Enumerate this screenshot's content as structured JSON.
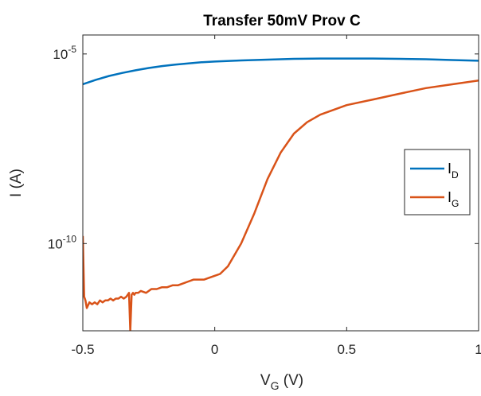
{
  "chart_data": {
    "type": "line",
    "title": "Transfer 50mV Prov C",
    "xlabel": {
      "main": "V",
      "sub": "G",
      "suffix": " (V)"
    },
    "ylabel": "I (A)",
    "xlim": [
      -0.5,
      1
    ],
    "ylim_log10": [
      -12.3,
      -4.5
    ],
    "yscale": "log",
    "x_ticks": [
      {
        "value": -0.5,
        "label": "-0.5"
      },
      {
        "value": 0,
        "label": "0"
      },
      {
        "value": 0.5,
        "label": "0.5"
      },
      {
        "value": 1,
        "label": "1"
      }
    ],
    "y_ticks": [
      {
        "exp": -5,
        "base": "10",
        "sup": "-5"
      },
      {
        "exp": -10,
        "base": "10",
        "sup": "-10"
      }
    ],
    "grid": false,
    "legend_position": "right",
    "series": [
      {
        "name": "I",
        "sub": "D",
        "color": "#0072BD",
        "x": [
          -0.5,
          -0.45,
          -0.4,
          -0.35,
          -0.3,
          -0.25,
          -0.2,
          -0.15,
          -0.1,
          -0.05,
          0,
          0.1,
          0.2,
          0.3,
          0.4,
          0.5,
          0.6,
          0.7,
          0.8,
          0.9,
          1.0
        ],
        "log10_y": [
          -5.8,
          -5.68,
          -5.58,
          -5.5,
          -5.43,
          -5.37,
          -5.32,
          -5.28,
          -5.25,
          -5.22,
          -5.2,
          -5.17,
          -5.15,
          -5.13,
          -5.12,
          -5.12,
          -5.12,
          -5.13,
          -5.14,
          -5.16,
          -5.18
        ]
      },
      {
        "name": "I",
        "sub": "G",
        "color": "#D95319",
        "x": [
          -0.5,
          -0.495,
          -0.49,
          -0.485,
          -0.475,
          -0.465,
          -0.455,
          -0.445,
          -0.435,
          -0.425,
          -0.415,
          -0.405,
          -0.395,
          -0.385,
          -0.375,
          -0.365,
          -0.355,
          -0.345,
          -0.335,
          -0.325,
          -0.32,
          -0.315,
          -0.31,
          -0.305,
          -0.3,
          -0.29,
          -0.28,
          -0.26,
          -0.24,
          -0.22,
          -0.2,
          -0.18,
          -0.16,
          -0.14,
          -0.12,
          -0.1,
          -0.08,
          -0.06,
          -0.04,
          -0.02,
          0,
          0.02,
          0.05,
          0.1,
          0.15,
          0.2,
          0.25,
          0.3,
          0.35,
          0.4,
          0.5,
          0.6,
          0.7,
          0.8,
          0.9,
          1.0
        ],
        "log10_y": [
          -9.8,
          -11.4,
          -11.5,
          -11.7,
          -11.55,
          -11.6,
          -11.55,
          -11.6,
          -11.5,
          -11.55,
          -11.5,
          -11.5,
          -11.45,
          -11.5,
          -11.45,
          -11.45,
          -11.4,
          -11.45,
          -11.4,
          -11.3,
          -12.3,
          -11.35,
          -11.3,
          -11.35,
          -11.3,
          -11.3,
          -11.25,
          -11.3,
          -11.2,
          -11.2,
          -11.15,
          -11.15,
          -11.1,
          -11.1,
          -11.05,
          -11.0,
          -10.95,
          -10.95,
          -10.95,
          -10.9,
          -10.85,
          -10.8,
          -10.6,
          -10.0,
          -9.2,
          -8.3,
          -7.6,
          -7.1,
          -6.8,
          -6.6,
          -6.35,
          -6.2,
          -6.05,
          -5.9,
          -5.8,
          -5.7
        ]
      }
    ]
  }
}
